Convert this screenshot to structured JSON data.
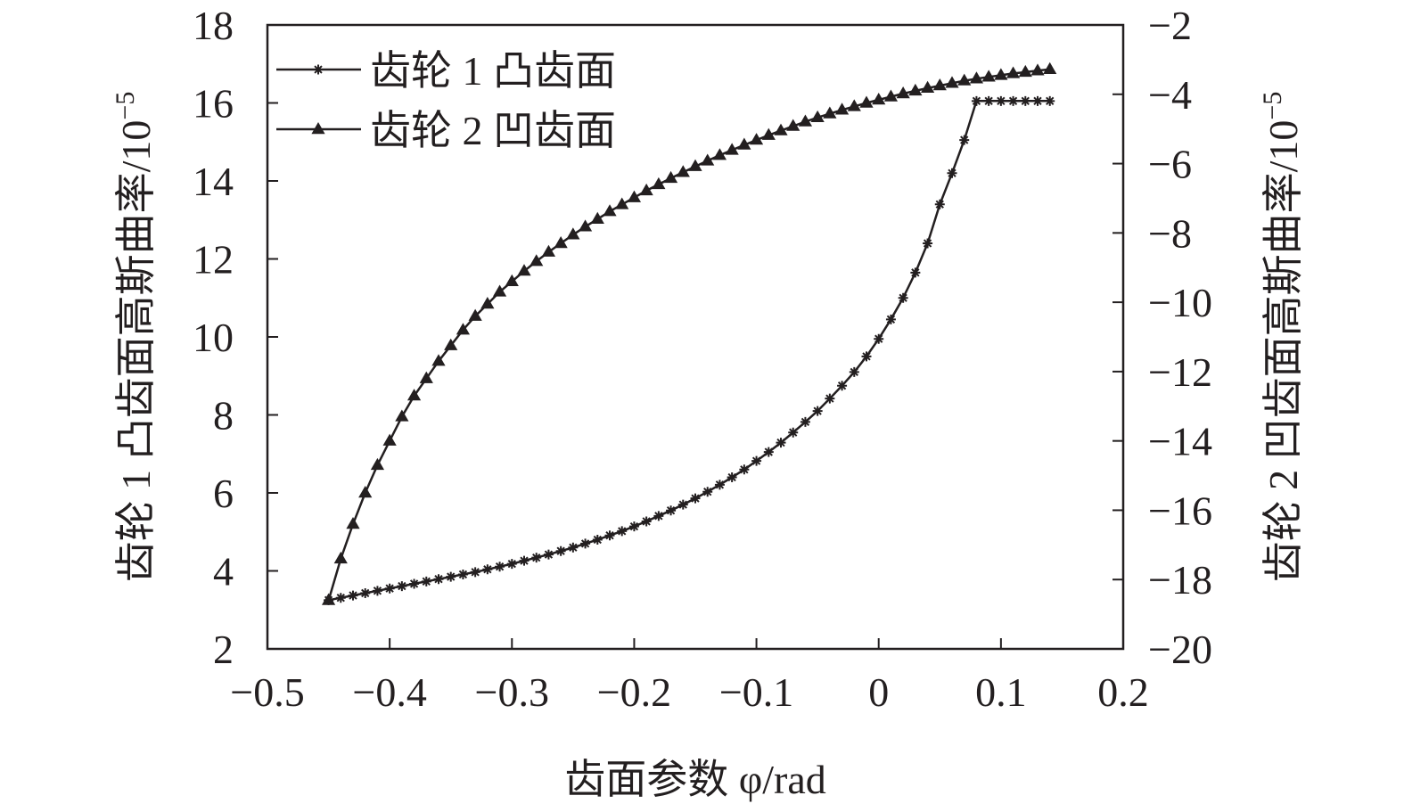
{
  "chart_data": {
    "type": "line",
    "xlabel": "齿面参数 φ/rad",
    "ylabel_left": "齿轮 1 凸齿面高斯曲率/10",
    "ylabel_left_exp": "−5",
    "ylabel_right": "齿轮 2 凹齿面高斯曲率/10",
    "ylabel_right_exp": "−5",
    "xlim": [
      -0.5,
      0.2
    ],
    "ylim_left": [
      2,
      18
    ],
    "ylim_right": [
      -20,
      -2
    ],
    "x_ticks": [
      "−0.5",
      "−0.4",
      "−0.3",
      "−0.2",
      "−0.1",
      "0",
      "0.1",
      "0.2"
    ],
    "y_ticks_left": [
      "2",
      "4",
      "6",
      "8",
      "10",
      "12",
      "14",
      "16",
      "18"
    ],
    "y_ticks_right": [
      "−20",
      "−18",
      "−16",
      "−14",
      "−12",
      "−10",
      "−8",
      "−6",
      "−4",
      "−2"
    ],
    "legend_position": "top-left",
    "grid": false,
    "series": [
      {
        "name": "齿轮 1 凸齿面",
        "axis": "left",
        "marker": "asterisk",
        "x": [
          -0.45,
          -0.44,
          -0.43,
          -0.42,
          -0.41,
          -0.4,
          -0.39,
          -0.38,
          -0.37,
          -0.36,
          -0.35,
          -0.34,
          -0.33,
          -0.32,
          -0.31,
          -0.3,
          -0.29,
          -0.28,
          -0.27,
          -0.26,
          -0.25,
          -0.24,
          -0.23,
          -0.22,
          -0.21,
          -0.2,
          -0.19,
          -0.18,
          -0.17,
          -0.16,
          -0.15,
          -0.14,
          -0.13,
          -0.12,
          -0.11,
          -0.1,
          -0.09,
          -0.08,
          -0.07,
          -0.06,
          -0.05,
          -0.04,
          -0.03,
          -0.02,
          -0.01,
          0.0,
          0.01,
          0.02,
          0.03,
          0.04,
          0.05,
          0.06,
          0.07,
          0.08,
          0.09,
          0.1,
          0.11,
          0.12,
          0.13,
          0.14
        ],
        "y": [
          3.25,
          3.31,
          3.37,
          3.43,
          3.49,
          3.55,
          3.61,
          3.67,
          3.73,
          3.79,
          3.85,
          3.91,
          3.97,
          4.04,
          4.11,
          4.18,
          4.26,
          4.34,
          4.42,
          4.51,
          4.6,
          4.7,
          4.8,
          4.91,
          5.02,
          5.14,
          5.27,
          5.41,
          5.55,
          5.7,
          5.86,
          6.03,
          6.21,
          6.4,
          6.6,
          6.82,
          7.05,
          7.29,
          7.55,
          7.82,
          8.1,
          8.42,
          8.75,
          9.1,
          9.5,
          9.95,
          10.45,
          11.0,
          11.65,
          12.4,
          13.4,
          14.2,
          15.05,
          16.05,
          16.05,
          16.05,
          16.05,
          16.05,
          16.05,
          16.05
        ]
      },
      {
        "name": "齿轮 2 凹齿面",
        "axis": "right",
        "marker": "triangle",
        "x": [
          -0.45,
          -0.44,
          -0.43,
          -0.42,
          -0.41,
          -0.4,
          -0.39,
          -0.38,
          -0.37,
          -0.36,
          -0.35,
          -0.34,
          -0.33,
          -0.32,
          -0.31,
          -0.3,
          -0.29,
          -0.28,
          -0.27,
          -0.26,
          -0.25,
          -0.24,
          -0.23,
          -0.22,
          -0.21,
          -0.2,
          -0.19,
          -0.18,
          -0.17,
          -0.16,
          -0.15,
          -0.14,
          -0.13,
          -0.12,
          -0.11,
          -0.1,
          -0.09,
          -0.08,
          -0.07,
          -0.06,
          -0.05,
          -0.04,
          -0.03,
          -0.02,
          -0.01,
          0.0,
          0.01,
          0.02,
          0.03,
          0.04,
          0.05,
          0.06,
          0.07,
          0.08,
          0.09,
          0.1,
          0.11,
          0.12,
          0.13,
          0.14
        ],
        "y": [
          -18.6,
          -17.4,
          -16.4,
          -15.5,
          -14.7,
          -14.0,
          -13.3,
          -12.7,
          -12.2,
          -11.7,
          -11.25,
          -10.8,
          -10.4,
          -10.05,
          -9.7,
          -9.4,
          -9.1,
          -8.82,
          -8.55,
          -8.3,
          -8.05,
          -7.82,
          -7.6,
          -7.38,
          -7.18,
          -6.98,
          -6.78,
          -6.6,
          -6.42,
          -6.25,
          -6.08,
          -5.92,
          -5.76,
          -5.61,
          -5.46,
          -5.32,
          -5.18,
          -5.05,
          -4.92,
          -4.79,
          -4.67,
          -4.56,
          -4.45,
          -4.35,
          -4.25,
          -4.16,
          -4.07,
          -3.98,
          -3.9,
          -3.82,
          -3.75,
          -3.68,
          -3.61,
          -3.55,
          -3.5,
          -3.45,
          -3.4,
          -3.36,
          -3.32,
          -3.28
        ]
      }
    ]
  }
}
